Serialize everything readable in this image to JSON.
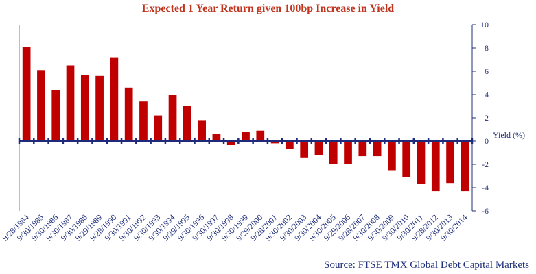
{
  "chart_data": {
    "type": "bar",
    "title": "Expected 1 Year Return given 100bp Increase in Yield",
    "source": "Source: FTSE TMX Global Debt Capital Markets",
    "ylabel": "Yield (%)",
    "ylim": [
      -6,
      10
    ],
    "yticks": [
      -6,
      -4,
      -2,
      0,
      2,
      4,
      6,
      8,
      10
    ],
    "categories": [
      "9/28/1984",
      "9/30/1985",
      "9/30/1986",
      "9/30/1987",
      "9/30/1988",
      "9/29/1989",
      "9/28/1990",
      "9/30/1991",
      "9/30/1992",
      "9/30/1993",
      "9/30/1994",
      "9/29/1995",
      "9/30/1996",
      "9/30/1997",
      "9/30/1998",
      "9/30/1999",
      "9/29/2000",
      "9/28/2001",
      "9/30/2002",
      "9/30/2003",
      "9/30/2004",
      "9/30/2005",
      "9/29/2006",
      "9/28/2007",
      "9/30/2008",
      "9/30/2009",
      "9/30/2010",
      "9/30/2011",
      "9/28/2012",
      "9/30/2013",
      "9/30/2014"
    ],
    "values": [
      8.1,
      6.1,
      4.4,
      6.5,
      5.7,
      5.6,
      7.2,
      4.6,
      3.4,
      2.2,
      4.0,
      3.0,
      1.8,
      0.6,
      -0.3,
      0.8,
      0.9,
      -0.2,
      -0.7,
      -1.4,
      -1.2,
      -2.0,
      -2.0,
      -1.3,
      -1.3,
      -2.5,
      -3.1,
      -3.7,
      -4.3,
      -3.6,
      -4.3
    ],
    "bar_color": "#c00000",
    "zero_line_color": "#1f2a7a",
    "text_color": "#1f2f7a",
    "title_color": "#c0351f",
    "grid": false,
    "legend": "none"
  }
}
